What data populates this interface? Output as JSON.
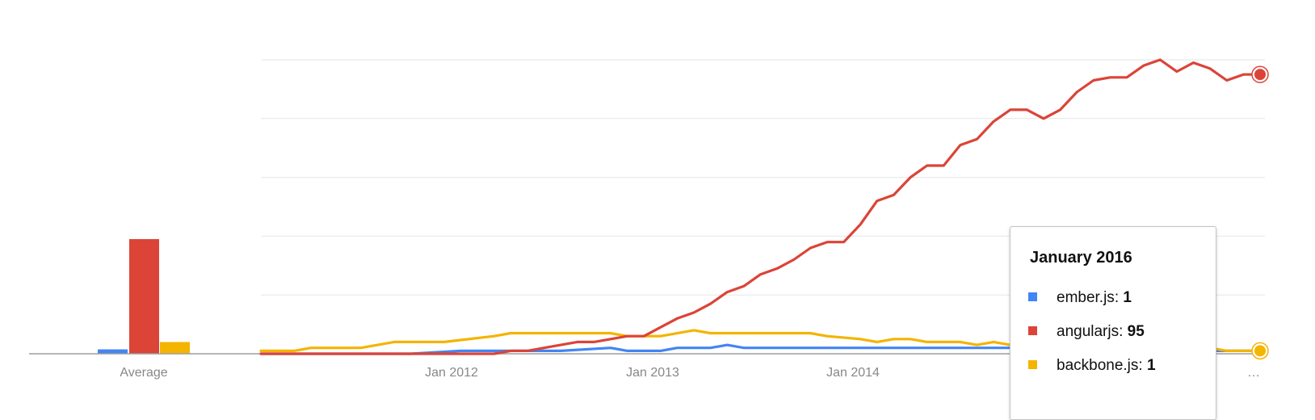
{
  "chart_data": {
    "type": "line",
    "x_tick_labels": [
      "Jan 2012",
      "Jan 2013",
      "Jan 2014",
      "…"
    ],
    "average_label": "Average",
    "ylim": [
      0,
      100
    ],
    "grid": true,
    "x_range": [
      "Jan 2011",
      "Jan 2016"
    ],
    "series": [
      {
        "name": "ember.js",
        "color": "#4285f4",
        "average": 1.5,
        "points": [
          [
            "2011-01",
            0
          ],
          [
            "2011-07",
            0
          ],
          [
            "2011-10",
            0
          ],
          [
            "2012-01",
            1
          ],
          [
            "2012-04",
            1
          ],
          [
            "2012-07",
            1
          ],
          [
            "2012-10",
            2
          ],
          [
            "2012-11",
            1
          ],
          [
            "2013-01",
            1
          ],
          [
            "2013-02",
            2
          ],
          [
            "2013-04",
            2
          ],
          [
            "2013-05",
            3
          ],
          [
            "2013-06",
            2
          ],
          [
            "2013-10",
            2
          ],
          [
            "2014-01",
            2
          ],
          [
            "2014-07",
            2
          ],
          [
            "2015-01",
            2
          ],
          [
            "2015-04",
            1
          ],
          [
            "2015-07",
            1
          ],
          [
            "2016-01",
            1
          ]
        ]
      },
      {
        "name": "angularjs",
        "color": "#db4437",
        "average": 39,
        "points": [
          [
            "2011-01",
            0
          ],
          [
            "2011-04",
            0
          ],
          [
            "2011-07",
            0
          ],
          [
            "2011-10",
            0
          ],
          [
            "2012-01",
            0
          ],
          [
            "2012-03",
            0
          ],
          [
            "2012-04",
            1
          ],
          [
            "2012-05",
            1
          ],
          [
            "2012-06",
            2
          ],
          [
            "2012-07",
            3
          ],
          [
            "2012-08",
            4
          ],
          [
            "2012-09",
            4
          ],
          [
            "2012-10",
            5
          ],
          [
            "2012-11",
            6
          ],
          [
            "2012-12",
            6
          ],
          [
            "2013-01",
            9
          ],
          [
            "2013-02",
            12
          ],
          [
            "2013-03",
            14
          ],
          [
            "2013-04",
            17
          ],
          [
            "2013-05",
            21
          ],
          [
            "2013-06",
            23
          ],
          [
            "2013-07",
            27
          ],
          [
            "2013-08",
            29
          ],
          [
            "2013-09",
            32
          ],
          [
            "2013-10",
            36
          ],
          [
            "2013-11",
            38
          ],
          [
            "2013-12",
            38
          ],
          [
            "2014-01",
            44
          ],
          [
            "2014-02",
            52
          ],
          [
            "2014-03",
            54
          ],
          [
            "2014-04",
            60
          ],
          [
            "2014-05",
            64
          ],
          [
            "2014-06",
            64
          ],
          [
            "2014-07",
            71
          ],
          [
            "2014-08",
            73
          ],
          [
            "2014-09",
            79
          ],
          [
            "2014-10",
            83
          ],
          [
            "2014-11",
            83
          ],
          [
            "2014-12",
            80
          ],
          [
            "2015-01",
            83
          ],
          [
            "2015-02",
            89
          ],
          [
            "2015-03",
            93
          ],
          [
            "2015-04",
            94
          ],
          [
            "2015-05",
            94
          ],
          [
            "2015-06",
            98
          ],
          [
            "2015-07",
            100
          ],
          [
            "2015-08",
            96
          ],
          [
            "2015-09",
            99
          ],
          [
            "2015-10",
            97
          ],
          [
            "2015-11",
            93
          ],
          [
            "2015-12",
            95
          ],
          [
            "2016-01",
            95
          ]
        ]
      },
      {
        "name": "backbone.js",
        "color": "#f4b400",
        "average": 4,
        "points": [
          [
            "2011-01",
            1
          ],
          [
            "2011-03",
            1
          ],
          [
            "2011-04",
            2
          ],
          [
            "2011-07",
            2
          ],
          [
            "2011-09",
            4
          ],
          [
            "2011-12",
            4
          ],
          [
            "2012-03",
            6
          ],
          [
            "2012-04",
            7
          ],
          [
            "2012-07",
            7
          ],
          [
            "2012-10",
            7
          ],
          [
            "2012-11",
            6
          ],
          [
            "2013-01",
            6
          ],
          [
            "2013-03",
            8
          ],
          [
            "2013-04",
            7
          ],
          [
            "2013-07",
            7
          ],
          [
            "2013-10",
            7
          ],
          [
            "2013-11",
            6
          ],
          [
            "2014-01",
            5
          ],
          [
            "2014-02",
            4
          ],
          [
            "2014-03",
            5
          ],
          [
            "2014-04",
            5
          ],
          [
            "2014-05",
            4
          ],
          [
            "2014-07",
            4
          ],
          [
            "2014-08",
            3
          ],
          [
            "2014-09",
            4
          ],
          [
            "2014-10",
            3
          ],
          [
            "2015-01",
            3
          ],
          [
            "2015-07",
            2
          ],
          [
            "2015-10",
            2
          ],
          [
            "2015-11",
            1
          ],
          [
            "2016-01",
            1
          ]
        ]
      }
    ]
  },
  "tooltip": {
    "title": "January 2016",
    "rows": [
      {
        "name": "ember.js",
        "value": "1",
        "color": "#4285f4"
      },
      {
        "name": "angularjs",
        "value": "95",
        "color": "#db4437"
      },
      {
        "name": "backbone.js",
        "value": "1",
        "color": "#f4b400"
      }
    ]
  }
}
